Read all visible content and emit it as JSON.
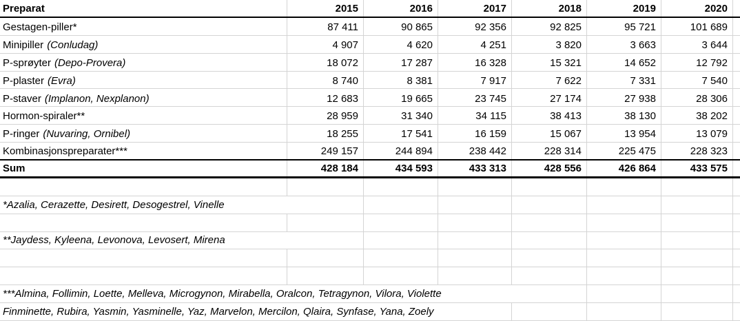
{
  "colors": {
    "gridline": "#d4d4d4",
    "border": "#000000",
    "background": "#ffffff",
    "text": "#000000"
  },
  "table": {
    "header": {
      "label": "Preparat",
      "years": [
        "2015",
        "2016",
        "2017",
        "2018",
        "2019",
        "2020"
      ]
    },
    "rows": [
      {
        "name": "Gestagen-piller*",
        "italic": "",
        "values": [
          "87 411",
          "90 865",
          "92 356",
          "92 825",
          "95 721",
          "101 689"
        ]
      },
      {
        "name": "Minipiller",
        "italic": "(Conludag)",
        "values": [
          "4 907",
          "4 620",
          "4 251",
          "3 820",
          "3 663",
          "3 644"
        ]
      },
      {
        "name": "P-sprøyter",
        "italic": "(Depo-Provera)",
        "values": [
          "18 072",
          "17 287",
          "16 328",
          "15 321",
          "14 652",
          "12 792"
        ]
      },
      {
        "name": "P-plaster",
        "italic": "(Evra)",
        "values": [
          "8 740",
          "8 381",
          "7 917",
          "7 622",
          "7 331",
          "7 540"
        ]
      },
      {
        "name": "P-staver",
        "italic": "(Implanon, Nexplanon)",
        "values": [
          "12 683",
          "19 665",
          "23 745",
          "27 174",
          "27 938",
          "28 306"
        ]
      },
      {
        "name": "Hormon-spiraler**",
        "italic": "",
        "values": [
          "28 959",
          "31 340",
          "34 115",
          "38 413",
          "38 130",
          "38 202"
        ]
      },
      {
        "name": "P-ringer",
        "italic": "(Nuvaring, Ornibel)",
        "values": [
          "18 255",
          "17 541",
          "16 159",
          "15 067",
          "13 954",
          "13 079"
        ]
      },
      {
        "name": "Kombinasjonspreparater***",
        "italic": "",
        "values": [
          "249 157",
          "244 894",
          "238 442",
          "228 314",
          "225 475",
          "228 323"
        ]
      }
    ],
    "sum": {
      "label": "Sum",
      "values": [
        "428 184",
        "434 593",
        "433 313",
        "428 556",
        "426 864",
        "433 575"
      ]
    }
  },
  "lower_rows": [
    {
      "text": ""
    },
    {
      "text": "*Azalia, Cerazette, Desirett, Desogestrel, Vinelle",
      "hide_borders_after": [
        0
      ]
    },
    {
      "text": ""
    },
    {
      "text": "**Jaydess, Kyleena, Levonova, Levosert, Mirena",
      "hide_borders_after": [
        0
      ]
    },
    {
      "text": ""
    },
    {
      "text": ""
    },
    {
      "text": "***Almina, Follimin, Loette, Melleva, Microgynon, Mirabella, Oralcon, Tetragynon, Vilora, Violette",
      "hide_borders_after": [
        0,
        1,
        2,
        3
      ]
    },
    {
      "text": "Finminette, Rubira, Yasmin, Yasminelle, Yaz, Marvelon, Mercilon, Qlaira, Synfase, Yana, Zoely",
      "hide_borders_after": [
        0,
        1,
        2
      ]
    }
  ]
}
